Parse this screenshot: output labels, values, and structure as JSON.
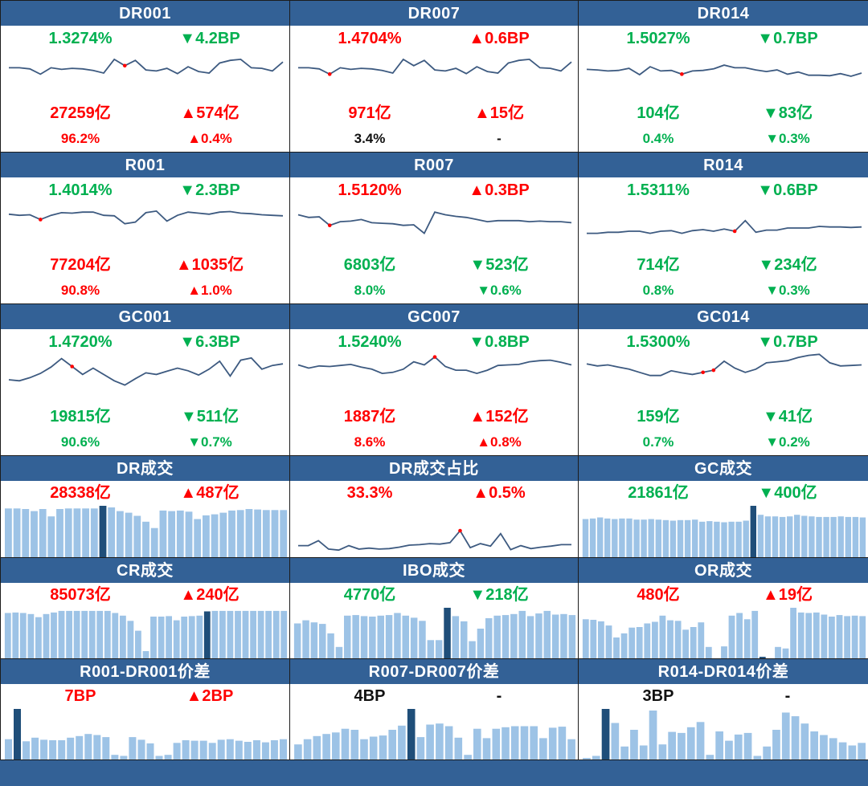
{
  "colors": {
    "header": "#336196",
    "up": "#ff0000",
    "down": "#00b050",
    "neutral": "#111111",
    "line": "#3d5a80",
    "marker": "#ff0000",
    "bar": "#9dc3e6",
    "bar_highlight": "#1f4e79"
  },
  "cells": [
    {
      "title": "DR001",
      "rows": [
        {
          "left": {
            "text": "1.3274%",
            "tone": "down"
          },
          "right": {
            "text": "▼4.2BP",
            "tone": "down"
          }
        },
        {
          "left": {
            "text": "27259亿",
            "tone": "up"
          },
          "right": {
            "text": "▲574亿",
            "tone": "up"
          }
        },
        {
          "left": {
            "text": "96.2%",
            "tone": "up"
          },
          "right": {
            "text": "▲0.4%",
            "tone": "up"
          }
        }
      ]
    },
    {
      "title": "DR007",
      "rows": [
        {
          "left": {
            "text": "1.4704%",
            "tone": "up"
          },
          "right": {
            "text": "▲0.6BP",
            "tone": "up"
          }
        },
        {
          "left": {
            "text": "971亿",
            "tone": "up"
          },
          "right": {
            "text": "▲15亿",
            "tone": "up"
          }
        },
        {
          "left": {
            "text": "3.4%",
            "tone": "neutral"
          },
          "right": {
            "text": "-",
            "tone": "neutral"
          }
        }
      ]
    },
    {
      "title": "DR014",
      "rows": [
        {
          "left": {
            "text": "1.5027%",
            "tone": "down"
          },
          "right": {
            "text": "▼0.7BP",
            "tone": "down"
          }
        },
        {
          "left": {
            "text": "104亿",
            "tone": "down"
          },
          "right": {
            "text": "▼83亿",
            "tone": "down"
          }
        },
        {
          "left": {
            "text": "0.4%",
            "tone": "down"
          },
          "right": {
            "text": "▼0.3%",
            "tone": "down"
          }
        }
      ]
    },
    {
      "title": "R001",
      "rows": [
        {
          "left": {
            "text": "1.4014%",
            "tone": "down"
          },
          "right": {
            "text": "▼2.3BP",
            "tone": "down"
          }
        },
        {
          "left": {
            "text": "77204亿",
            "tone": "up"
          },
          "right": {
            "text": "▲1035亿",
            "tone": "up"
          }
        },
        {
          "left": {
            "text": "90.8%",
            "tone": "up"
          },
          "right": {
            "text": "▲1.0%",
            "tone": "up"
          }
        }
      ]
    },
    {
      "title": "R007",
      "rows": [
        {
          "left": {
            "text": "1.5120%",
            "tone": "up"
          },
          "right": {
            "text": "▲0.3BP",
            "tone": "up"
          }
        },
        {
          "left": {
            "text": "6803亿",
            "tone": "down"
          },
          "right": {
            "text": "▼523亿",
            "tone": "down"
          }
        },
        {
          "left": {
            "text": "8.0%",
            "tone": "down"
          },
          "right": {
            "text": "▼0.6%",
            "tone": "down"
          }
        }
      ]
    },
    {
      "title": "R014",
      "rows": [
        {
          "left": {
            "text": "1.5311%",
            "tone": "down"
          },
          "right": {
            "text": "▼0.6BP",
            "tone": "down"
          }
        },
        {
          "left": {
            "text": "714亿",
            "tone": "down"
          },
          "right": {
            "text": "▼234亿",
            "tone": "down"
          }
        },
        {
          "left": {
            "text": "0.8%",
            "tone": "down"
          },
          "right": {
            "text": "▼0.3%",
            "tone": "down"
          }
        }
      ]
    },
    {
      "title": "GC001",
      "rows": [
        {
          "left": {
            "text": "1.4720%",
            "tone": "down"
          },
          "right": {
            "text": "▼6.3BP",
            "tone": "down"
          }
        },
        {
          "left": {
            "text": "19815亿",
            "tone": "down"
          },
          "right": {
            "text": "▼511亿",
            "tone": "down"
          }
        },
        {
          "left": {
            "text": "90.6%",
            "tone": "down"
          },
          "right": {
            "text": "▼0.7%",
            "tone": "down"
          }
        }
      ]
    },
    {
      "title": "GC007",
      "rows": [
        {
          "left": {
            "text": "1.5240%",
            "tone": "down"
          },
          "right": {
            "text": "▼0.8BP",
            "tone": "down"
          }
        },
        {
          "left": {
            "text": "1887亿",
            "tone": "up"
          },
          "right": {
            "text": "▲152亿",
            "tone": "up"
          }
        },
        {
          "left": {
            "text": "8.6%",
            "tone": "up"
          },
          "right": {
            "text": "▲0.8%",
            "tone": "up"
          }
        }
      ]
    },
    {
      "title": "GC014",
      "rows": [
        {
          "left": {
            "text": "1.5300%",
            "tone": "down"
          },
          "right": {
            "text": "▼0.7BP",
            "tone": "down"
          }
        },
        {
          "left": {
            "text": "159亿",
            "tone": "down"
          },
          "right": {
            "text": "▼41亿",
            "tone": "down"
          }
        },
        {
          "left": {
            "text": "0.7%",
            "tone": "down"
          },
          "right": {
            "text": "▼0.2%",
            "tone": "down"
          }
        }
      ]
    },
    {
      "title": "DR成交",
      "rows": [
        {
          "left": {
            "text": "28338亿",
            "tone": "up"
          },
          "right": {
            "text": "▲487亿",
            "tone": "up"
          }
        }
      ]
    },
    {
      "title": "DR成交占比",
      "rows": [
        {
          "left": {
            "text": "33.3%",
            "tone": "up"
          },
          "right": {
            "text": "▲0.5%",
            "tone": "up"
          }
        }
      ]
    },
    {
      "title": "GC成交",
      "rows": [
        {
          "left": {
            "text": "21861亿",
            "tone": "down"
          },
          "right": {
            "text": "▼400亿",
            "tone": "down"
          }
        }
      ]
    },
    {
      "title": "CR成交",
      "rows": [
        {
          "left": {
            "text": "85073亿",
            "tone": "up"
          },
          "right": {
            "text": "▲240亿",
            "tone": "up"
          }
        }
      ]
    },
    {
      "title": "IBO成交",
      "rows": [
        {
          "left": {
            "text": "4770亿",
            "tone": "down"
          },
          "right": {
            "text": "▼218亿",
            "tone": "down"
          }
        }
      ]
    },
    {
      "title": "OR成交",
      "rows": [
        {
          "left": {
            "text": "480亿",
            "tone": "up"
          },
          "right": {
            "text": "▲19亿",
            "tone": "up"
          }
        }
      ]
    },
    {
      "title": "R001-DR001价差",
      "rows": [
        {
          "left": {
            "text": "7BP",
            "tone": "up"
          },
          "right": {
            "text": "▲2BP",
            "tone": "up"
          }
        }
      ]
    },
    {
      "title": "R007-DR007价差",
      "rows": [
        {
          "left": {
            "text": "4BP",
            "tone": "neutral"
          },
          "right": {
            "text": "-",
            "tone": "neutral"
          }
        }
      ]
    },
    {
      "title": "R014-DR014价差",
      "rows": [
        {
          "left": {
            "text": "3BP",
            "tone": "neutral"
          },
          "right": {
            "text": "-",
            "tone": "neutral"
          }
        }
      ]
    }
  ],
  "chart_data": [
    {
      "type": "line",
      "name": "DR001",
      "values": [
        66,
        66,
        64,
        54,
        66,
        63,
        65,
        64,
        61,
        56,
        82,
        70,
        80,
        62,
        60,
        65,
        55,
        68,
        59,
        56,
        75,
        80,
        82,
        66,
        65,
        60,
        77
      ]
    },
    {
      "type": "line",
      "name": "DR007",
      "values": [
        66,
        66,
        64,
        54,
        66,
        63,
        65,
        64,
        61,
        56,
        82,
        70,
        80,
        62,
        60,
        65,
        55,
        68,
        59,
        56,
        75,
        80,
        82,
        66,
        65,
        60,
        77
      ]
    },
    {
      "type": "line",
      "name": "DR014",
      "values": [
        63,
        62,
        60,
        61,
        65,
        53,
        68,
        60,
        61,
        54,
        60,
        61,
        64,
        71,
        66,
        66,
        62,
        59,
        62,
        54,
        58,
        52,
        52,
        51,
        55,
        50,
        56
      ]
    },
    {
      "type": "line",
      "name": "R001",
      "values": [
        76,
        74,
        75,
        66,
        74,
        79,
        78,
        80,
        80,
        74,
        73,
        58,
        61,
        79,
        82,
        63,
        74,
        80,
        78,
        76,
        80,
        81,
        78,
        77,
        75,
        74,
        73
      ]
    },
    {
      "type": "line",
      "name": "R007",
      "values": [
        75,
        70,
        71,
        55,
        62,
        63,
        66,
        60,
        59,
        58,
        55,
        56,
        40,
        80,
        75,
        72,
        70,
        66,
        62,
        64,
        64,
        64,
        62,
        63,
        62,
        62,
        60
      ]
    },
    {
      "type": "line",
      "name": "R014",
      "values": [
        40,
        40,
        42,
        42,
        44,
        44,
        40,
        44,
        45,
        40,
        45,
        47,
        44,
        48,
        44,
        64,
        42,
        46,
        46,
        50,
        50,
        50,
        53,
        52,
        52,
        51,
        52
      ]
    },
    {
      "type": "line",
      "name": "GC001",
      "values": [
        50,
        48,
        54,
        62,
        74,
        90,
        75,
        60,
        72,
        60,
        48,
        40,
        52,
        63,
        60,
        66,
        72,
        67,
        59,
        70,
        85,
        57,
        87,
        91,
        70,
        77,
        80
      ]
    },
    {
      "type": "line",
      "name": "GC007",
      "values": [
        78,
        72,
        76,
        75,
        77,
        79,
        74,
        70,
        62,
        64,
        70,
        84,
        78,
        93,
        75,
        68,
        68,
        62,
        68,
        77,
        78,
        79,
        84,
        86,
        87,
        83,
        78
      ]
    },
    {
      "type": "line",
      "name": "GC014",
      "values": [
        80,
        76,
        78,
        74,
        70,
        64,
        58,
        58,
        67,
        63,
        60,
        64,
        68,
        85,
        72,
        64,
        70,
        82,
        84,
        86,
        92,
        96,
        98,
        82,
        76,
        77,
        78
      ]
    },
    {
      "type": "bar",
      "name": "DR成交",
      "values": [
        95,
        95,
        94,
        90,
        94,
        80,
        94,
        95,
        95,
        95,
        95,
        100,
        97,
        90,
        87,
        81,
        70,
        58,
        91,
        90,
        91,
        89,
        75,
        82,
        84,
        87,
        91,
        92,
        94,
        93,
        92,
        92,
        92
      ],
      "highlight": 11
    },
    {
      "type": "line",
      "name": "DR成交占比",
      "values": [
        20,
        20,
        30,
        13,
        11,
        20,
        13,
        15,
        13,
        14,
        17,
        21,
        22,
        24,
        23,
        26,
        50,
        16,
        24,
        19,
        44,
        12,
        20,
        14,
        17,
        19,
        22,
        22
      ]
    },
    {
      "type": "bar",
      "name": "GC成交",
      "values": [
        75,
        76,
        78,
        76,
        75,
        76,
        76,
        74,
        74,
        75,
        74,
        73,
        72,
        73,
        73,
        74,
        70,
        71,
        70,
        69,
        70,
        70,
        72,
        100,
        83,
        80,
        80,
        79,
        80,
        83,
        81,
        80,
        79,
        79,
        79,
        80,
        79,
        79,
        78
      ],
      "highlight": 23
    },
    {
      "type": "bar",
      "name": "CR成交",
      "values": [
        90,
        91,
        90,
        88,
        82,
        88,
        91,
        94,
        94,
        94,
        94,
        94,
        94,
        94,
        90,
        85,
        75,
        56,
        17,
        83,
        83,
        84,
        76,
        83,
        84,
        85,
        93,
        94,
        94,
        94,
        94,
        94,
        94,
        94,
        94,
        94,
        94
      ],
      "highlight": 26
    },
    {
      "type": "bar",
      "name": "IBO成交",
      "values": [
        70,
        76,
        72,
        69,
        51,
        25,
        85,
        86,
        84,
        83,
        85,
        86,
        90,
        85,
        81,
        75,
        38,
        38,
        100,
        84,
        74,
        36,
        60,
        80,
        85,
        86,
        88,
        94,
        84,
        89,
        94,
        87,
        88,
        86
      ],
      "highlight": 18
    },
    {
      "type": "bar",
      "name": "OR成交",
      "values": [
        78,
        77,
        74,
        66,
        43,
        51,
        62,
        63,
        70,
        73,
        85,
        76,
        75,
        58,
        63,
        72,
        25,
        1,
        26,
        85,
        90,
        78,
        94,
        6,
        0,
        25,
        22,
        100,
        91,
        90,
        91,
        87,
        83,
        86,
        84,
        85,
        84
      ],
      "highlight": 23
    },
    {
      "type": "bar",
      "name": "R001-DR001价差",
      "values": [
        42,
        100,
        38,
        45,
        41,
        40,
        40,
        45,
        48,
        52,
        50,
        46,
        12,
        10,
        46,
        41,
        34,
        10,
        12,
        35,
        40,
        39,
        39,
        35,
        41,
        42,
        39,
        37,
        40,
        36,
        40,
        42
      ],
      "highlight": 1
    },
    {
      "type": "bar",
      "name": "R007-DR007价差",
      "values": [
        32,
        42,
        48,
        52,
        55,
        62,
        60,
        42,
        47,
        49,
        60,
        68,
        100,
        46,
        70,
        72,
        67,
        45,
        12,
        62,
        44,
        62,
        65,
        67,
        67,
        67,
        44,
        64,
        66,
        42
      ],
      "highlight": 12
    },
    {
      "type": "bar",
      "name": "R014-DR014价差",
      "values": [
        6,
        10,
        100,
        73,
        28,
        60,
        30,
        97,
        32,
        56,
        54,
        65,
        75,
        12,
        57,
        39,
        51,
        54,
        10,
        28,
        60,
        93,
        86,
        72,
        57,
        50,
        44,
        36,
        30,
        35
      ],
      "highlight": 2
    }
  ]
}
